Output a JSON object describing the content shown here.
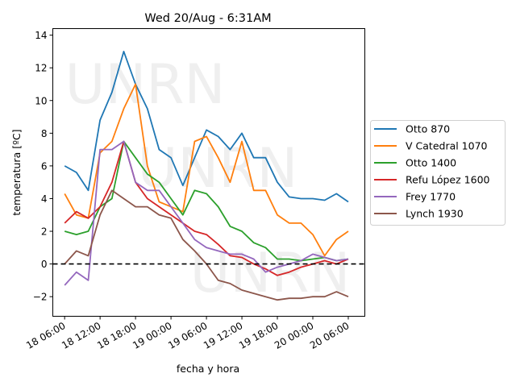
{
  "chart_data": {
    "type": "line",
    "title": "Wed 20/Aug - 6:31AM",
    "xlabel": "fecha y hora",
    "ylabel": "temperatura [ºC]",
    "x_unit": "hours since 18 06:00",
    "xlim": [
      -2.0,
      50.8
    ],
    "ylim": [
      -3.2,
      14.4
    ],
    "xticks": [
      {
        "h": 0,
        "label": "18 06:00"
      },
      {
        "h": 6,
        "label": "18 12:00"
      },
      {
        "h": 12,
        "label": "18 18:00"
      },
      {
        "h": 18,
        "label": "19 00:00"
      },
      {
        "h": 24,
        "label": "19 06:00"
      },
      {
        "h": 30,
        "label": "19 12:00"
      },
      {
        "h": 36,
        "label": "19 18:00"
      },
      {
        "h": 42,
        "label": "20 00:00"
      },
      {
        "h": 48,
        "label": "20 06:00"
      }
    ],
    "yticks": [
      -2,
      0,
      2,
      4,
      6,
      8,
      10,
      12,
      14
    ],
    "reference_line": {
      "y": 0,
      "style": "dashed",
      "color": "#000000"
    },
    "legend_position": "center-right outside",
    "grid": false,
    "watermark": [
      "UNRN",
      "UNRN",
      "UNRN"
    ],
    "x": [
      0,
      2,
      4,
      6,
      8,
      10,
      12,
      14,
      16,
      18,
      20,
      22,
      24,
      26,
      28,
      30,
      32,
      34,
      36,
      38,
      40,
      42,
      44,
      46,
      48
    ],
    "series": [
      {
        "name": "Otto 870",
        "color": "#1f77b4",
        "values": [
          6.0,
          5.6,
          4.5,
          8.8,
          10.5,
          13.0,
          11.0,
          9.5,
          7.0,
          6.5,
          4.8,
          6.5,
          8.2,
          7.8,
          7.0,
          8.0,
          6.5,
          6.5,
          5.0,
          4.1,
          4.0,
          4.0,
          3.9,
          4.3,
          3.8
        ]
      },
      {
        "name": "V Catedral 1070",
        "color": "#ff7f0e",
        "values": [
          4.3,
          3.0,
          2.8,
          6.8,
          7.5,
          9.5,
          11.0,
          6.0,
          3.8,
          3.5,
          3.2,
          7.5,
          7.8,
          6.5,
          5.0,
          7.5,
          4.5,
          4.5,
          3.0,
          2.5,
          2.5,
          1.8,
          0.5,
          1.5,
          2.0
        ]
      },
      {
        "name": "Otto 1400",
        "color": "#2ca02c",
        "values": [
          2.0,
          1.8,
          2.0,
          3.5,
          4.0,
          7.5,
          6.5,
          5.5,
          5.0,
          4.0,
          3.0,
          4.5,
          4.3,
          3.5,
          2.3,
          2.0,
          1.3,
          1.0,
          0.3,
          0.3,
          0.2,
          0.3,
          0.4,
          0.2,
          0.3
        ]
      },
      {
        "name": "Refu López 1600",
        "color": "#d62728",
        "values": [
          2.5,
          3.2,
          2.8,
          3.5,
          5.0,
          7.5,
          5.0,
          4.0,
          3.5,
          3.0,
          2.5,
          2.0,
          1.8,
          1.2,
          0.5,
          0.4,
          0.0,
          -0.3,
          -0.7,
          -0.5,
          -0.2,
          0.0,
          0.2,
          0.0,
          0.3
        ]
      },
      {
        "name": "Frey 1770",
        "color": "#9467bd",
        "values": [
          -1.3,
          -0.5,
          -1.0,
          7.0,
          7.0,
          7.5,
          5.0,
          4.5,
          4.5,
          3.5,
          2.5,
          1.5,
          1.0,
          0.8,
          0.6,
          0.6,
          0.3,
          -0.5,
          -0.2,
          0.0,
          0.2,
          0.6,
          0.4,
          0.2,
          0.3
        ]
      },
      {
        "name": "Lynch 1930",
        "color": "#8c564b",
        "values": [
          0.0,
          0.8,
          0.5,
          3.0,
          4.5,
          4.0,
          3.5,
          3.5,
          3.0,
          2.8,
          1.5,
          0.8,
          0.0,
          -1.0,
          -1.2,
          -1.6,
          -1.8,
          -2.0,
          -2.2,
          -2.1,
          -2.1,
          -2.0,
          -2.0,
          -1.7,
          -2.0
        ]
      }
    ]
  }
}
